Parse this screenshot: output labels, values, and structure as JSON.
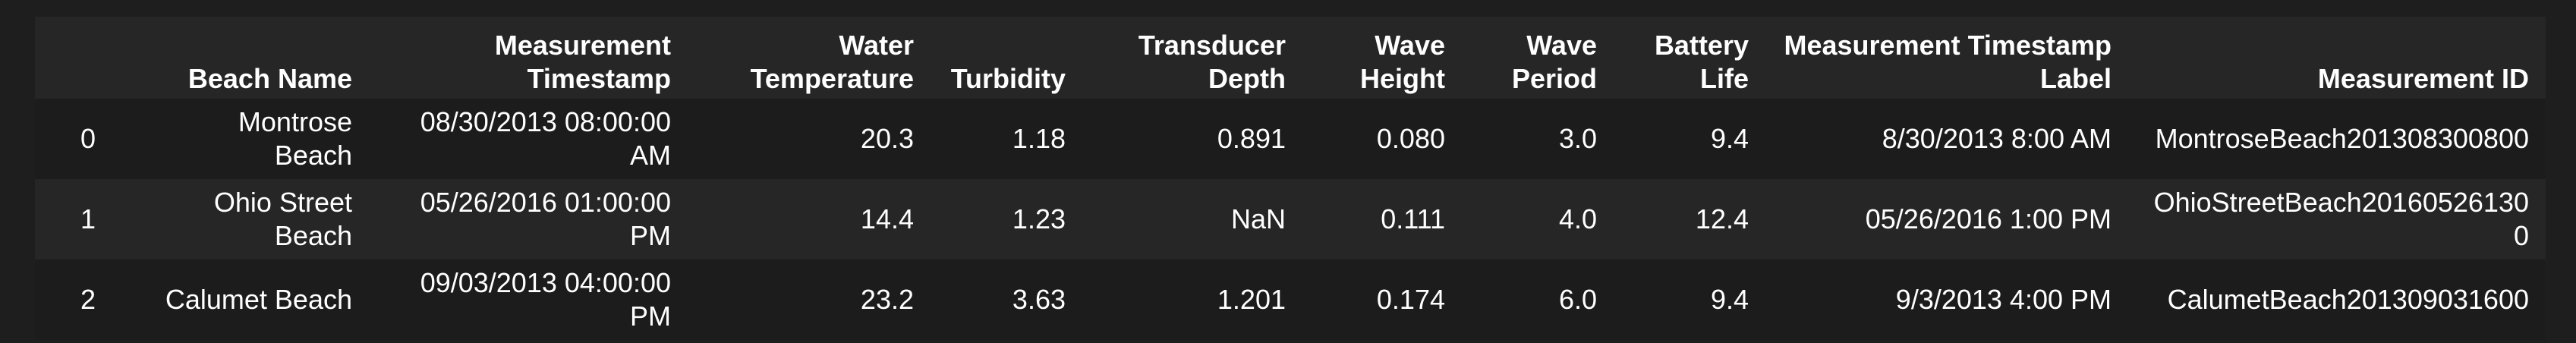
{
  "table": {
    "index_header": "",
    "columns": [
      "Beach Name",
      "Measurement Timestamp",
      "Water Temperature",
      "Turbidity",
      "Transducer Depth",
      "Wave Height",
      "Wave Period",
      "Battery Life",
      "Measurement Timestamp Label",
      "Measurement ID"
    ],
    "rows": [
      {
        "index": "0",
        "cells": [
          "Montrose Beach",
          "08/30/2013 08:00:00 AM",
          "20.3",
          "1.18",
          "0.891",
          "0.080",
          "3.0",
          "9.4",
          "8/30/2013 8:00 AM",
          "MontroseBeach201308300800"
        ]
      },
      {
        "index": "1",
        "cells": [
          "Ohio Street Beach",
          "05/26/2016 01:00:00 PM",
          "14.4",
          "1.23",
          "NaN",
          "0.111",
          "4.0",
          "12.4",
          "05/26/2016 1:00 PM",
          "OhioStreetBeach201605261300"
        ]
      },
      {
        "index": "2",
        "cells": [
          "Calumet Beach",
          "09/03/2013 04:00:00 PM",
          "23.2",
          "3.63",
          "1.201",
          "0.174",
          "6.0",
          "9.4",
          "9/3/2013 4:00 PM",
          "CalumetBeach201309031600"
        ]
      }
    ]
  }
}
